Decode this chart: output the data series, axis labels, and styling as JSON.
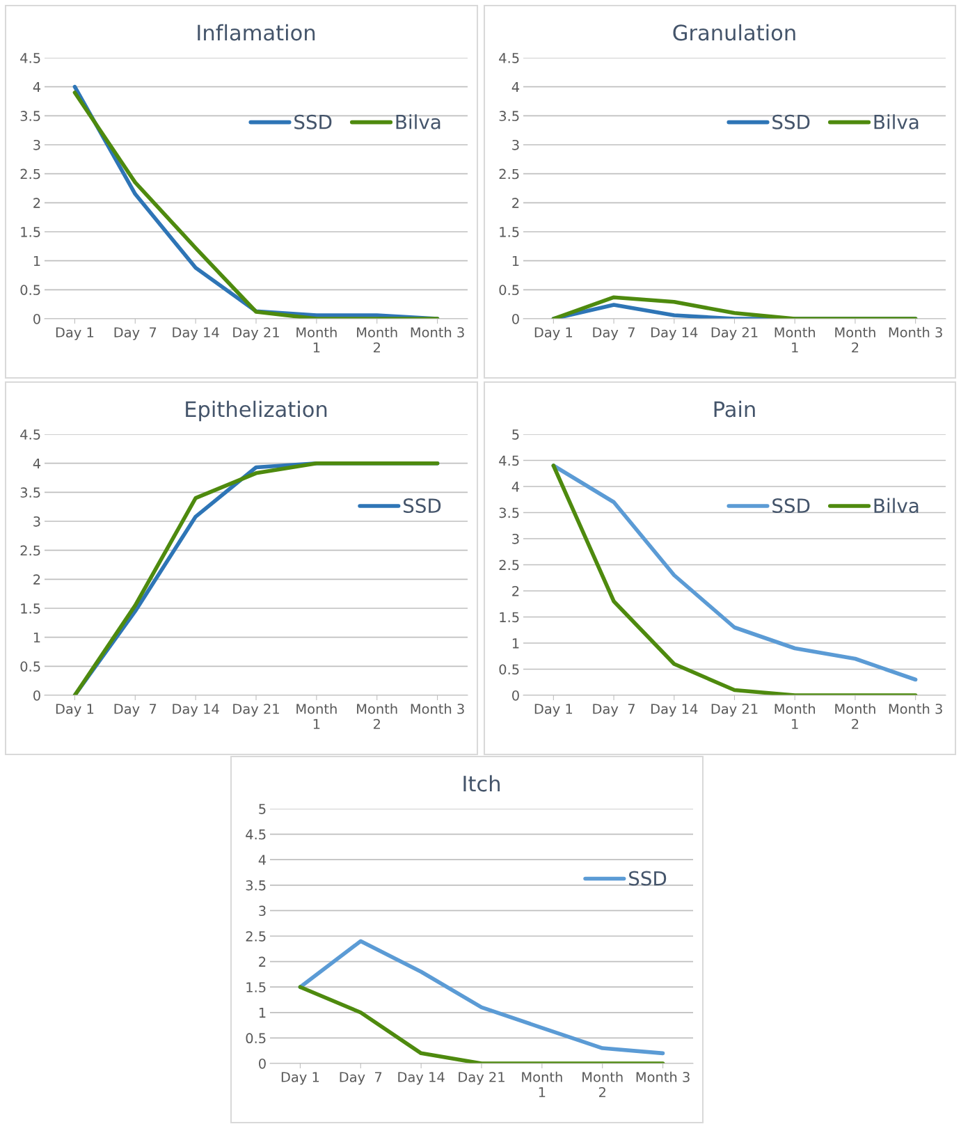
{
  "chart_data": [
    {
      "type": "line",
      "title": "Inflamation",
      "categories": [
        "Day 1",
        "Day  7",
        "Day 14",
        "Day 21",
        "Month\n1",
        "Month\n2",
        "Month 3"
      ],
      "ylim": [
        0,
        4.5
      ],
      "yticks": [
        0,
        0.5,
        1,
        1.5,
        2,
        2.5,
        3,
        3.5,
        4,
        4.5
      ],
      "grid": "y",
      "legend": "top right",
      "series": [
        {
          "name": "SSD",
          "color": "#2e75b6",
          "values": [
            4,
            2.15,
            0.88,
            0.13,
            0.06,
            0.06,
            0
          ]
        },
        {
          "name": "Bilva",
          "color": "#4e8a0e",
          "values": [
            3.9,
            2.35,
            1.22,
            0.12,
            0,
            0,
            0
          ]
        }
      ]
    },
    {
      "type": "line",
      "title": "Granulation",
      "categories": [
        "Day 1",
        "Day  7",
        "Day 14",
        "Day 21",
        "Month\n1",
        "Month\n2",
        "Month 3"
      ],
      "ylim": [
        0,
        4.5
      ],
      "yticks": [
        0,
        0.5,
        1,
        1.5,
        2,
        2.5,
        3,
        3.5,
        4,
        4.5
      ],
      "grid": "y",
      "legend": "top right",
      "series": [
        {
          "name": "SSD",
          "color": "#2e75b6",
          "values": [
            0,
            0.24,
            0.06,
            0,
            0,
            0,
            0
          ]
        },
        {
          "name": "Bilva",
          "color": "#4e8a0e",
          "values": [
            0,
            0.37,
            0.29,
            0.1,
            0,
            0,
            0
          ]
        }
      ]
    },
    {
      "type": "line",
      "title": "Epithelization",
      "categories": [
        "Day 1",
        "Day  7",
        "Day 14",
        "Day 21",
        "Month\n1",
        "Month\n2",
        "Month 3"
      ],
      "ylim": [
        0,
        4.5
      ],
      "yticks": [
        0,
        0.5,
        1,
        1.5,
        2,
        2.5,
        3,
        3.5,
        4,
        4.5
      ],
      "grid": "y",
      "legend": "right",
      "series": [
        {
          "name": "SSD",
          "color": "#2e75b6",
          "values": [
            0,
            1.45,
            3.08,
            3.93,
            4,
            4,
            4
          ]
        },
        {
          "color": "#4e8a0e",
          "values": [
            0,
            1.55,
            3.4,
            3.83,
            4,
            4,
            4
          ]
        }
      ]
    },
    {
      "type": "line",
      "title": "Pain",
      "categories": [
        "Day 1",
        "Day  7",
        "Day 14",
        "Day 21",
        "Month\n1",
        "Month\n2",
        "Month 3"
      ],
      "ylim": [
        0,
        5
      ],
      "yticks": [
        0,
        0.5,
        1,
        1.5,
        2,
        2.5,
        3,
        3.5,
        4,
        4.5,
        5
      ],
      "grid": "y",
      "legend": "right",
      "series": [
        {
          "name": "SSD",
          "color": "#5b9bd5",
          "values": [
            4.4,
            3.7,
            2.3,
            1.3,
            0.9,
            0.7,
            0.3
          ]
        },
        {
          "name": "Bilva",
          "color": "#4e8a0e",
          "values": [
            4.4,
            1.8,
            0.6,
            0.1,
            0,
            0,
            0
          ]
        }
      ]
    },
    {
      "type": "line",
      "title": "Itch",
      "categories": [
        "Day 1",
        "Day  7",
        "Day 14",
        "Day 21",
        "Month\n1",
        "Month\n2",
        "Month 3"
      ],
      "ylim": [
        0,
        5
      ],
      "yticks": [
        0,
        0.5,
        1,
        1.5,
        2,
        2.5,
        3,
        3.5,
        4,
        4.5,
        5
      ],
      "grid": "y",
      "legend": "right",
      "series": [
        {
          "name": "SSD",
          "color": "#5b9bd5",
          "values": [
            1.5,
            2.4,
            1.8,
            1.1,
            0.7,
            0.3,
            0.2
          ]
        },
        {
          "color": "#4e8a0e",
          "values": [
            1.5,
            1.0,
            0.2,
            0,
            0,
            0,
            0
          ]
        }
      ]
    }
  ]
}
